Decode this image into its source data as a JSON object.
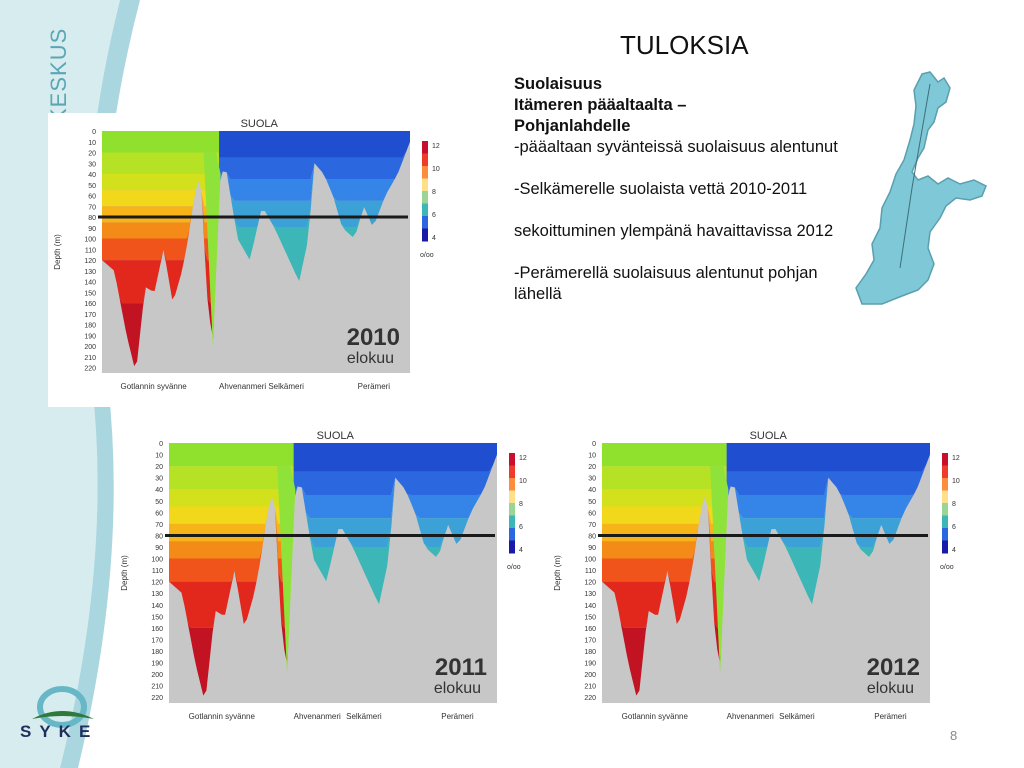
{
  "slide": {
    "title": "TULOKSIA",
    "brand": "MERIKESKUS",
    "logo_text": "SYKE",
    "page_number": "8"
  },
  "text": {
    "heading1": "Suolaisuus",
    "heading2": "Itämeren pääaltaalta –",
    "heading3": "Pohjanlahdelle",
    "bullet1": "-pääaltaan syvänteissä suolaisuus alentunut",
    "bullet2": "-Selkämerelle suolaista vettä 2010-2011",
    "bullet3": "sekoittuminen ylempänä havaittavissa 2012",
    "bullet4": "-Perämerellä suolaisuus alentunut pohjan lähellä"
  },
  "map": {
    "icon": "baltic-sea-map-icon",
    "water_color": "#7ec8d8"
  },
  "panels": [
    {
      "id": "2010",
      "title": "SUOLA",
      "year": "2010",
      "month": "elokuu"
    },
    {
      "id": "2011",
      "title": "SUOLA",
      "year": "2011",
      "month": "elokuu"
    },
    {
      "id": "2012",
      "title": "SUOLA",
      "year": "2012",
      "month": "elokuu"
    }
  ],
  "chart_common": {
    "y_label": "Depth (m)",
    "y_ticks": [
      "0",
      "10",
      "20",
      "30",
      "40",
      "50",
      "60",
      "70",
      "80",
      "90",
      "100",
      "110",
      "120",
      "130",
      "140",
      "150",
      "160",
      "170",
      "180",
      "190",
      "200",
      "210",
      "220"
    ],
    "x_labels": [
      "Gotlannin syvänne",
      "Ahvenanmeri",
      "Selkämeri",
      "Perämeri"
    ],
    "colorbar_ticks": [
      "12",
      "10",
      "8",
      "6",
      "4"
    ],
    "colorbar_unit": "o/oo",
    "reference_depth_m": 80
  }
}
